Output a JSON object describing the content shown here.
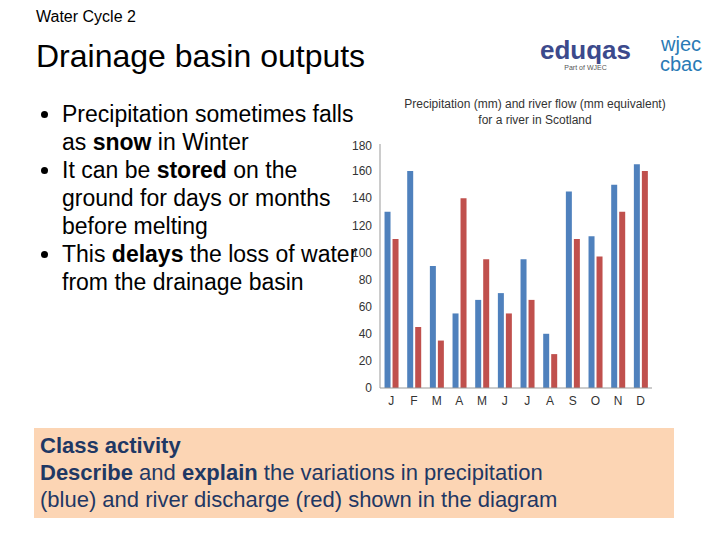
{
  "header": {
    "topic": "Water Cycle 2",
    "title": "Drainage basin outputs",
    "logo_left": "eduqas",
    "logo_left_sub": "Part of WJEC",
    "logo_right_top": "wjec",
    "logo_right_bottom": "cbac"
  },
  "bullets": [
    [
      {
        "text": "Precipitation sometimes falls as "
      },
      {
        "text": "snow",
        "bold": true
      },
      {
        "text": " in Winter"
      }
    ],
    [
      {
        "text": "It can be "
      },
      {
        "text": "stored",
        "bold": true
      },
      {
        "text": " on the ground for days or months before melting"
      }
    ],
    [
      {
        "text": "This "
      },
      {
        "text": "delays",
        "bold": true
      },
      {
        "text": " the loss of water from the drainage basin"
      }
    ]
  ],
  "activity": {
    "heading": "Class activity",
    "lines": [
      [
        {
          "text": "Describe",
          "bold": true
        },
        {
          "text": " and "
        },
        {
          "text": "explain",
          "bold": true
        },
        {
          "text": " the variations in precipitation"
        }
      ],
      [
        {
          "text": "(blue) and river discharge (red) shown in the diagram"
        }
      ]
    ]
  },
  "chart_data": {
    "type": "bar",
    "title": "Precipitation (mm) and river flow (mm equivalent) for a river in Scotland",
    "categories": [
      "J",
      "F",
      "M",
      "A",
      "M",
      "J",
      "J",
      "A",
      "S",
      "O",
      "N",
      "D"
    ],
    "series": [
      {
        "color": "#4f81bd",
        "values": [
          130,
          160,
          90,
          55,
          65,
          70,
          95,
          40,
          145,
          112,
          150,
          165
        ]
      },
      {
        "color": "#c0504d",
        "values": [
          110,
          45,
          35,
          140,
          95,
          55,
          65,
          25,
          110,
          97,
          130,
          160
        ]
      }
    ],
    "ylim": [
      0,
      180
    ],
    "yticks": [
      0,
      20,
      40,
      60,
      80,
      100,
      120,
      140,
      160,
      180
    ],
    "grid": false
  }
}
